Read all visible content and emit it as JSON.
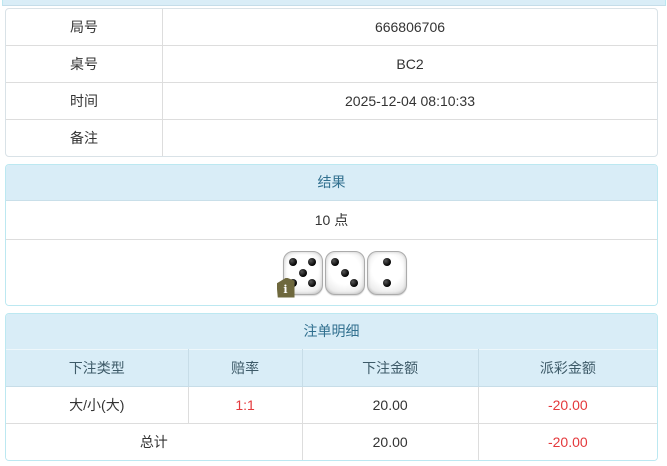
{
  "colors": {
    "panel_header_bg": "#d9edf7",
    "panel_border": "#bce8f1",
    "panel_title_text": "#31708f",
    "cell_divider": "#dddddd",
    "body_text": "#333333",
    "negative_value_text": "#e4393c",
    "info_badge_bg": "#6e683d"
  },
  "game_info": {
    "rows": [
      {
        "label": "局号",
        "value": "666806706"
      },
      {
        "label": "桌号",
        "value": "BC2"
      },
      {
        "label": "时间",
        "value": "2025-12-04 08:10:33"
      },
      {
        "label": "备注",
        "value": ""
      }
    ]
  },
  "result_panel": {
    "title": "结果",
    "points": "10 点",
    "dice": [
      5,
      3,
      2
    ],
    "info_badge_label": "i",
    "info_badge_on_die": 0
  },
  "bets_panel": {
    "title": "注单明细",
    "columns": [
      "下注类型",
      "赔率",
      "下注金额",
      "派彩金额"
    ],
    "rows": [
      {
        "type": "大/小(大)",
        "odds": "1:1",
        "amount": "20.00",
        "payout": "-20.00"
      }
    ],
    "total": {
      "label": "总计",
      "amount": "20.00",
      "payout": "-20.00"
    }
  }
}
